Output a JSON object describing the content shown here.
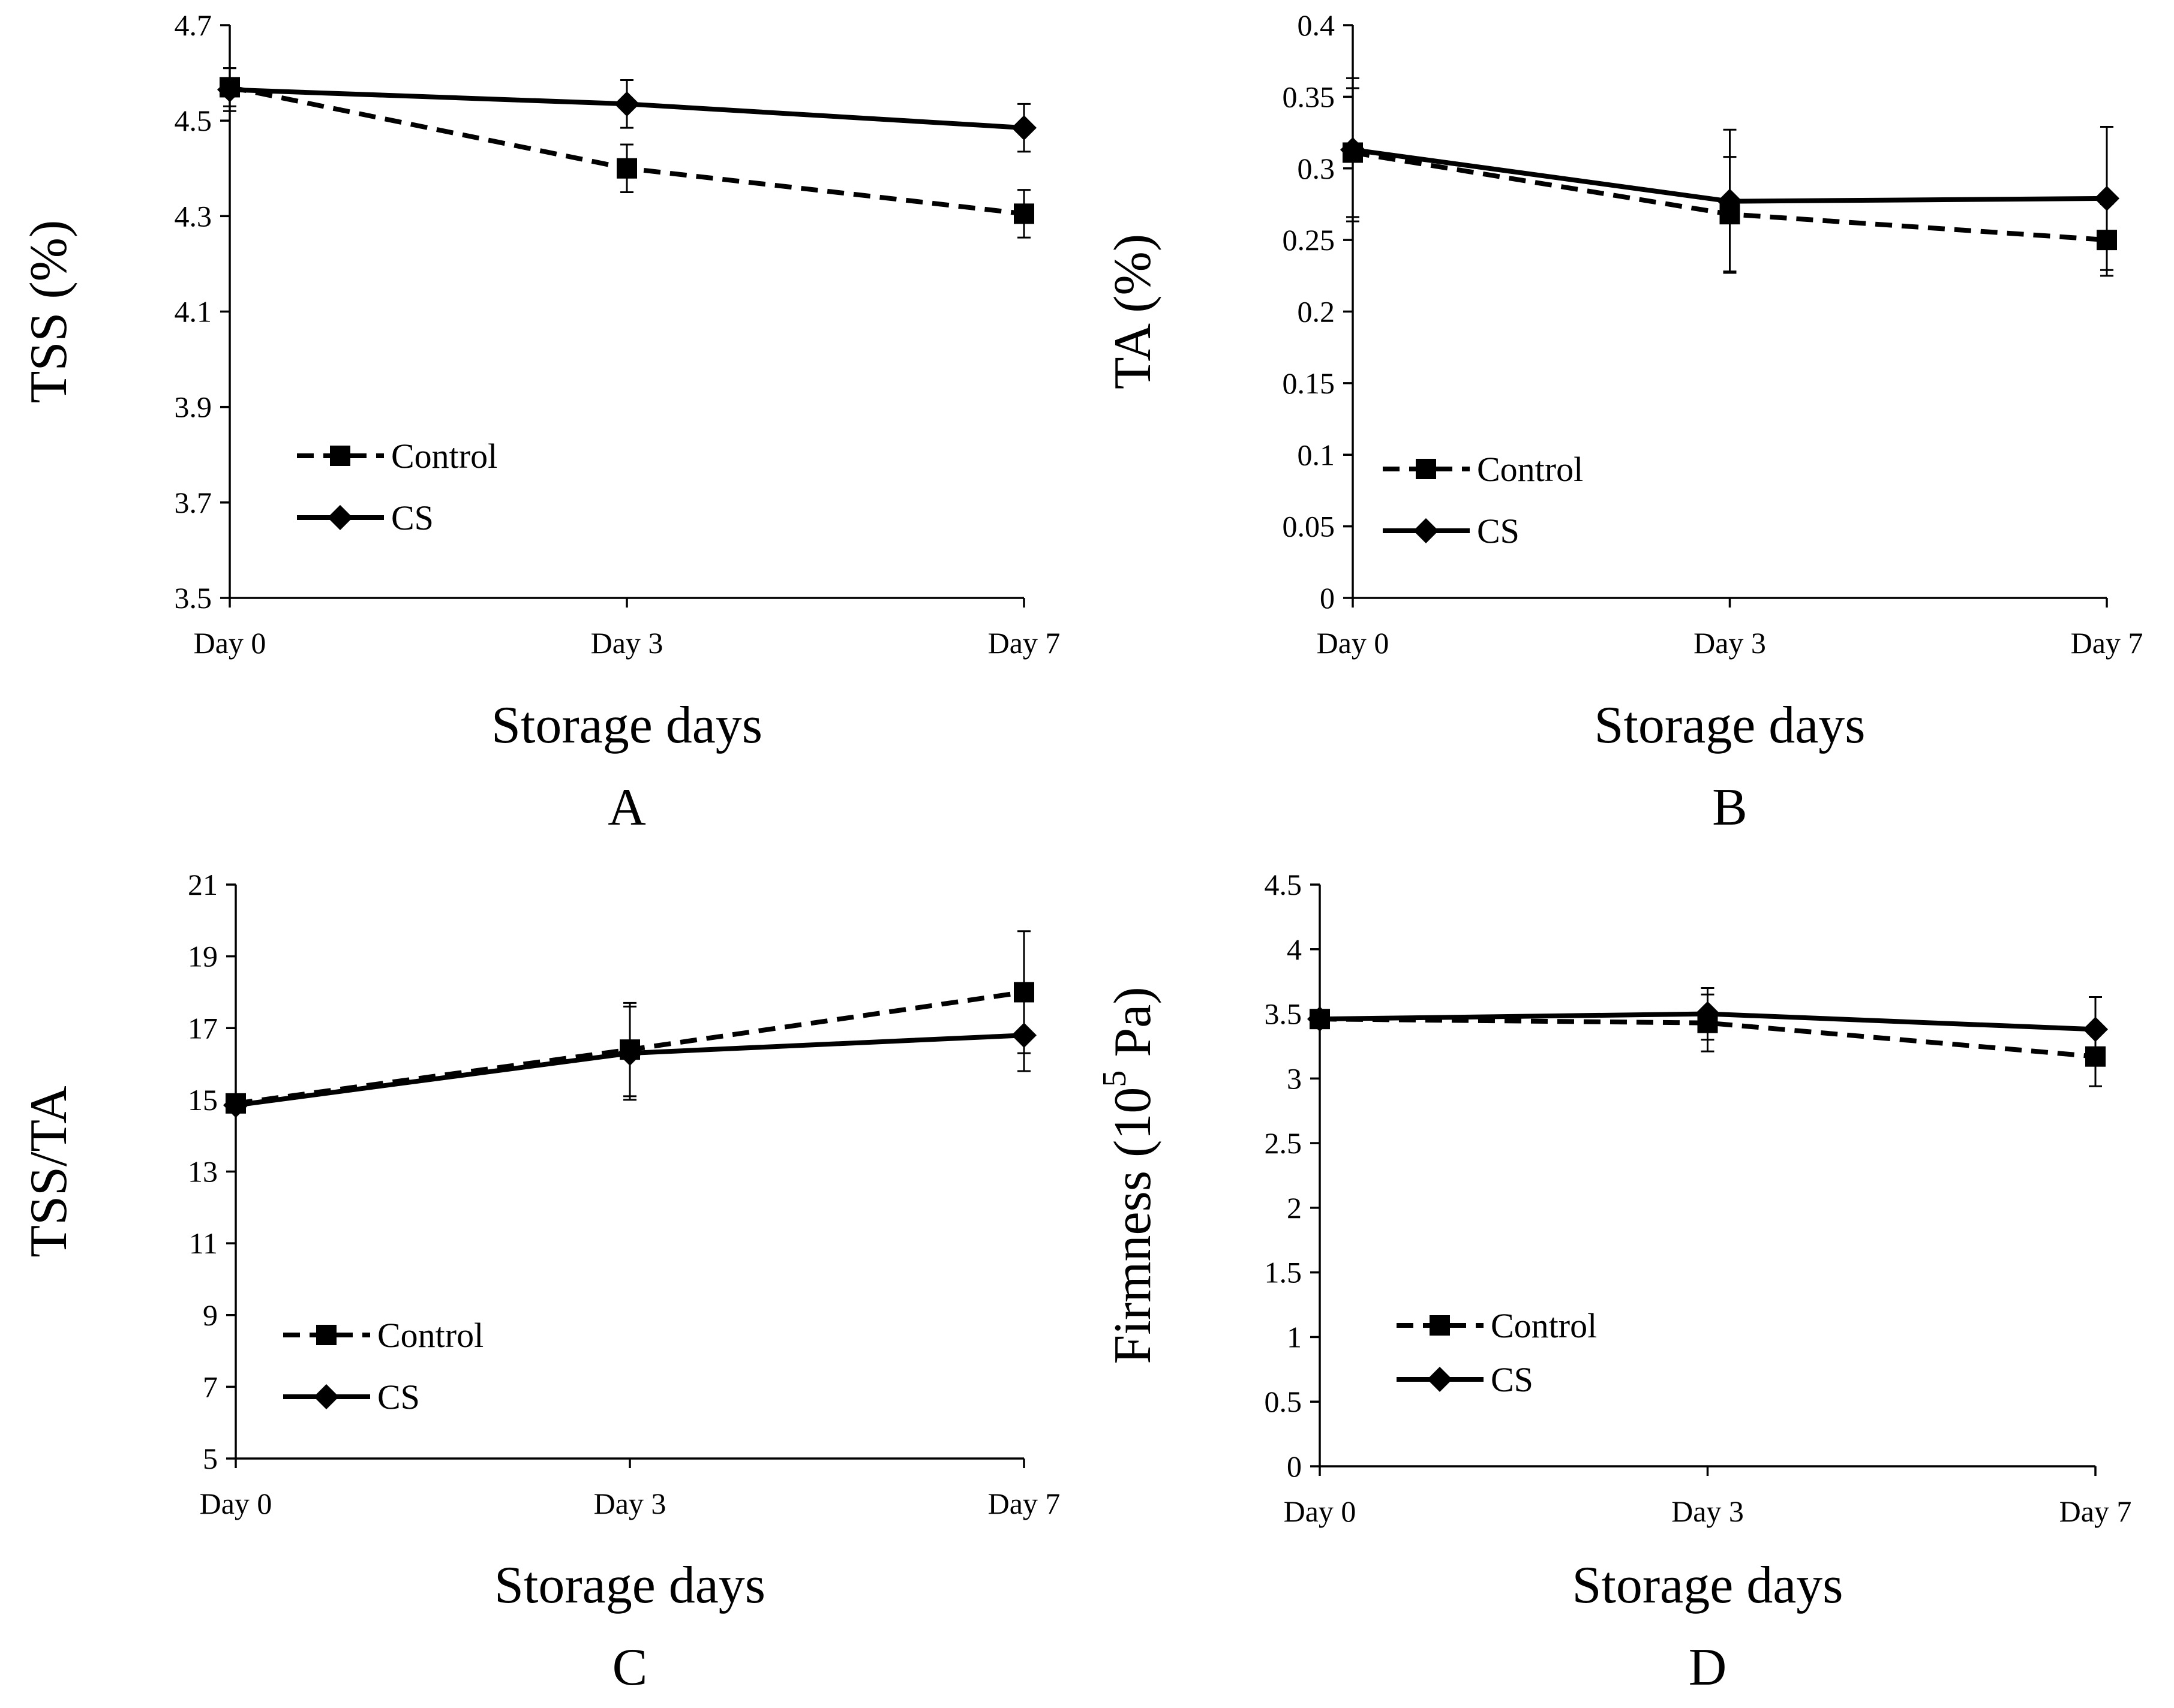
{
  "chart_data": [
    {
      "type": "line",
      "panel": "A",
      "xlabel": "Storage days",
      "ylabel": "TSS (%)",
      "categories": [
        "Day 0",
        "Day 3",
        "Day 7"
      ],
      "ylim": [
        3.5,
        4.7
      ],
      "yticks": [
        3.5,
        3.7,
        3.9,
        4.1,
        4.3,
        4.5,
        4.7
      ],
      "ytick_labels": [
        "3.5",
        "3.7",
        "3.9",
        "4.1",
        "4.3",
        "4.5",
        "4.7"
      ],
      "legend_position": "lower-left",
      "series": [
        {
          "name": "Control",
          "marker": "square",
          "style": "dashed",
          "values": [
            4.57,
            4.4,
            4.305
          ],
          "errors": [
            0.04,
            0.05,
            0.05
          ]
        },
        {
          "name": "CS",
          "marker": "diamond",
          "style": "solid",
          "values": [
            4.565,
            4.535,
            4.485
          ],
          "errors": [
            0.045,
            0.05,
            0.05
          ]
        }
      ]
    },
    {
      "type": "line",
      "panel": "B",
      "xlabel": "Storage days",
      "ylabel": "TA (%)",
      "categories": [
        "Day 0",
        "Day 3",
        "Day 7"
      ],
      "ylim": [
        0,
        0.4
      ],
      "yticks": [
        0,
        0.05,
        0.1,
        0.15,
        0.2,
        0.25,
        0.3,
        0.35,
        0.4
      ],
      "ytick_labels": [
        "0",
        "0.05",
        "0.1",
        "0.15",
        "0.2",
        "0.25",
        "0.3",
        "0.35",
        "0.4"
      ],
      "legend_position": "lower-left",
      "series": [
        {
          "name": "Control",
          "marker": "square",
          "style": "dashed",
          "values": [
            0.311,
            0.268,
            0.25
          ],
          "errors": [
            0.045,
            0.04,
            0.025
          ]
        },
        {
          "name": "CS",
          "marker": "diamond",
          "style": "solid",
          "values": [
            0.313,
            0.277,
            0.279
          ],
          "errors": [
            0.05,
            0.05,
            0.05
          ]
        }
      ]
    },
    {
      "type": "line",
      "panel": "C",
      "xlabel": "Storage days",
      "ylabel": "TSS/TA",
      "categories": [
        "Day 0",
        "Day 3",
        "Day 7"
      ],
      "ylim": [
        5,
        21
      ],
      "yticks": [
        5,
        7,
        9,
        11,
        13,
        15,
        17,
        19,
        21
      ],
      "ytick_labels": [
        "5",
        "7",
        "9",
        "11",
        "13",
        "15",
        "17",
        "19",
        "21"
      ],
      "legend_position": "lower-left",
      "series": [
        {
          "name": "Control",
          "marker": "square",
          "style": "dashed",
          "values": [
            14.9,
            16.4,
            18.0
          ],
          "errors": [
            0.2,
            1.3,
            1.7
          ]
        },
        {
          "name": "CS",
          "marker": "diamond",
          "style": "solid",
          "values": [
            14.85,
            16.3,
            16.8
          ],
          "errors": [
            0.2,
            1.3,
            1.0
          ]
        }
      ]
    },
    {
      "type": "line",
      "panel": "D",
      "xlabel": "Storage days",
      "ylabel_main": "Firmness (10",
      "ylabel_sup": "5",
      "ylabel_end": " Pa)",
      "categories": [
        "Day 0",
        "Day 3",
        "Day 7"
      ],
      "ylim": [
        0,
        4.5
      ],
      "yticks": [
        0,
        0.5,
        1,
        1.5,
        2,
        2.5,
        3,
        3.5,
        4,
        4.5
      ],
      "ytick_labels": [
        "0",
        "0.5",
        "1",
        "1.5",
        "2",
        "2.5",
        "3",
        "3.5",
        "4",
        "4.5"
      ],
      "legend_position": "lower-left",
      "series": [
        {
          "name": "Control",
          "marker": "square",
          "style": "dashed",
          "values": [
            3.46,
            3.43,
            3.17
          ],
          "errors": [
            0.05,
            0.22,
            0.23
          ]
        },
        {
          "name": "CS",
          "marker": "diamond",
          "style": "solid",
          "values": [
            3.46,
            3.5,
            3.38
          ],
          "errors": [
            0.05,
            0.2,
            0.25
          ]
        }
      ]
    }
  ]
}
